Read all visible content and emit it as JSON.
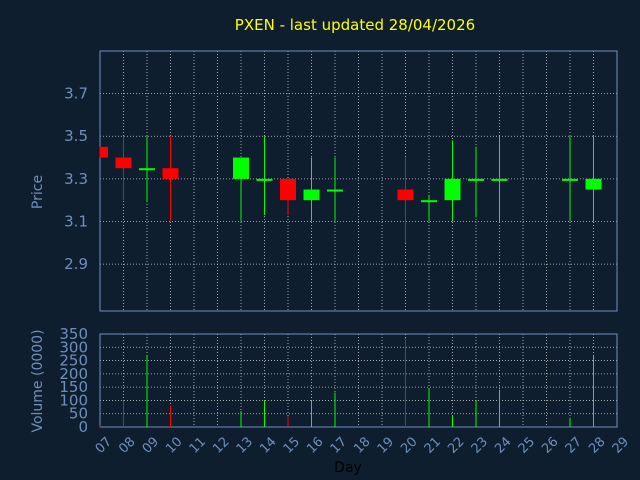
{
  "chart_data": {
    "type": "candlestick",
    "title": "PXEN - last updated 28/04/2026",
    "xlabel": "Day",
    "price_ylabel": "Price",
    "volume_ylabel": "Volume (0000)",
    "x_ticks": [
      "07",
      "08",
      "09",
      "10",
      "11",
      "12",
      "13",
      "14",
      "15",
      "16",
      "17",
      "18",
      "19",
      "20",
      "21",
      "22",
      "23",
      "24",
      "25",
      "26",
      "27",
      "28",
      "29"
    ],
    "price_yticks": [
      2.9,
      3.1,
      3.3,
      3.5,
      3.7
    ],
    "price_ylim": [
      2.68,
      3.9
    ],
    "volume_yticks": [
      0,
      50,
      100,
      150,
      200,
      250,
      300,
      350
    ],
    "volume_ylim": [
      0,
      350
    ],
    "xlim": [
      7,
      29
    ],
    "grid": true,
    "colors": {
      "up": "#00ff00",
      "down": "#ff0000",
      "title": "#ffff00",
      "axis_text": "#6f8fbf",
      "grid": "#c8c8c8",
      "background": "#0f1e2e"
    },
    "candles": [
      {
        "day": 7,
        "open": 3.45,
        "high": 3.45,
        "low": 3.4,
        "close": 3.4
      },
      {
        "day": 8,
        "open": 3.4,
        "high": 3.5,
        "low": 3.2,
        "close": 3.35
      },
      {
        "day": 9,
        "open": 3.35,
        "high": 3.5,
        "low": 3.19,
        "close": 3.35
      },
      {
        "day": 10,
        "open": 3.35,
        "high": 3.5,
        "low": 3.1,
        "close": 3.3
      },
      {
        "day": 13,
        "open": 3.3,
        "high": 3.4,
        "low": 3.1,
        "close": 3.4
      },
      {
        "day": 14,
        "open": 3.3,
        "high": 3.5,
        "low": 3.13,
        "close": 3.3
      },
      {
        "day": 15,
        "open": 3.3,
        "high": 3.3,
        "low": 3.13,
        "close": 3.2
      },
      {
        "day": 16,
        "open": 3.2,
        "high": 3.4,
        "low": 3.1,
        "close": 3.25
      },
      {
        "day": 17,
        "open": 3.25,
        "high": 3.4,
        "low": 3.1,
        "close": 3.25
      },
      {
        "day": 20,
        "open": 3.25,
        "high": 3.4,
        "low": 3.0,
        "close": 3.2
      },
      {
        "day": 21,
        "open": 3.2,
        "high": 3.22,
        "low": 3.1,
        "close": 3.2
      },
      {
        "day": 22,
        "open": 3.2,
        "high": 3.48,
        "low": 3.1,
        "close": 3.3
      },
      {
        "day": 23,
        "open": 3.3,
        "high": 3.45,
        "low": 3.12,
        "close": 3.3
      },
      {
        "day": 24,
        "open": 3.3,
        "high": 3.5,
        "low": 3.1,
        "close": 3.3
      },
      {
        "day": 27,
        "open": 3.3,
        "high": 3.5,
        "low": 3.1,
        "close": 3.3
      },
      {
        "day": 28,
        "open": 3.25,
        "high": 3.5,
        "low": 3.1,
        "close": 3.3
      }
    ],
    "volume": [
      {
        "day": 7,
        "value": 5,
        "direction": "down"
      },
      {
        "day": 8,
        "value": 100,
        "direction": "down"
      },
      {
        "day": 9,
        "value": 270,
        "direction": "up"
      },
      {
        "day": 10,
        "value": 80,
        "direction": "down"
      },
      {
        "day": 13,
        "value": 60,
        "direction": "up"
      },
      {
        "day": 14,
        "value": 100,
        "direction": "up"
      },
      {
        "day": 15,
        "value": 40,
        "direction": "down"
      },
      {
        "day": 16,
        "value": 100,
        "direction": "up"
      },
      {
        "day": 17,
        "value": 130,
        "direction": "up"
      },
      {
        "day": 20,
        "value": 335,
        "direction": "down"
      },
      {
        "day": 21,
        "value": 145,
        "direction": "up"
      },
      {
        "day": 22,
        "value": 45,
        "direction": "up"
      },
      {
        "day": 23,
        "value": 100,
        "direction": "up"
      },
      {
        "day": 24,
        "value": 140,
        "direction": "up"
      },
      {
        "day": 27,
        "value": 35,
        "direction": "up"
      },
      {
        "day": 28,
        "value": 270,
        "direction": "up"
      }
    ]
  }
}
